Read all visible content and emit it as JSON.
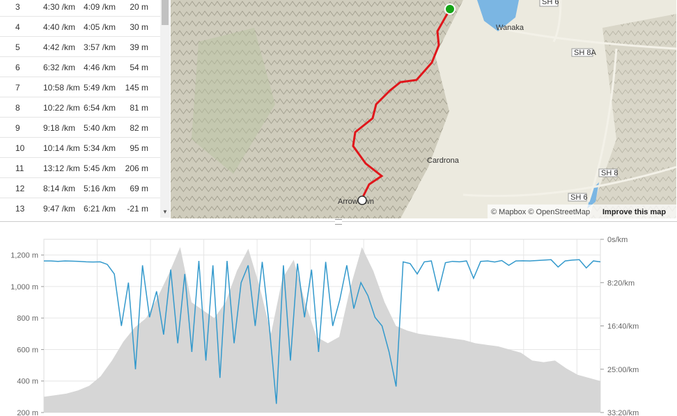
{
  "splits": {
    "rows": [
      [
        "3",
        "4:30 /km",
        "4:09 /km",
        "20 m"
      ],
      [
        "4",
        "4:40 /km",
        "4:05 /km",
        "30 m"
      ],
      [
        "5",
        "4:42 /km",
        "3:57 /km",
        "39 m"
      ],
      [
        "6",
        "6:32 /km",
        "4:46 /km",
        "54 m"
      ],
      [
        "7",
        "10:58 /km",
        "5:49 /km",
        "145 m"
      ],
      [
        "8",
        "10:22 /km",
        "6:54 /km",
        "81 m"
      ],
      [
        "9",
        "9:18 /km",
        "5:40 /km",
        "82 m"
      ],
      [
        "10",
        "10:14 /km",
        "5:34 /km",
        "95 m"
      ],
      [
        "11",
        "13:12 /km",
        "5:45 /km",
        "206 m"
      ],
      [
        "12",
        "8:14 /km",
        "5:16 /km",
        "69 m"
      ],
      [
        "13",
        "9:47 /km",
        "6:21 /km",
        "-21 m"
      ]
    ]
  },
  "map": {
    "labels": [
      "Wanaka",
      "Cardrona",
      "Arrowtown"
    ],
    "roads": [
      "SH 6",
      "SH 8A",
      "SH 8",
      "SH 6"
    ],
    "attribution": "© Mapbox © OpenStreetMap",
    "improve": "Improve this map"
  },
  "chart_data": {
    "type": "line",
    "ylim": [
      200,
      1300
    ],
    "yticks": [
      {
        "value": 200,
        "label": "200 m"
      },
      {
        "value": 400,
        "label": "400 m"
      },
      {
        "value": 600,
        "label": "600 m"
      },
      {
        "value": 800,
        "label": "800 m"
      },
      {
        "value": 1000,
        "label": "1,000 m"
      },
      {
        "value": 1200,
        "label": "1,200 m"
      }
    ],
    "y2lim": [
      0,
      2000
    ],
    "y2ticks": [
      {
        "value": 0,
        "label": "0s/km"
      },
      {
        "value": 500,
        "label": "8:20/km"
      },
      {
        "value": 1000,
        "label": "16:40/km"
      },
      {
        "value": 1500,
        "label": "25:00/km"
      },
      {
        "value": 2000,
        "label": "33:20/km"
      }
    ],
    "series": [
      {
        "type": "area",
        "color": "#d6d6d6",
        "values": [
          300,
          310,
          320,
          340,
          370,
          430,
          530,
          650,
          740,
          800,
          930,
          1080,
          1250,
          900,
          850,
          800,
          900,
          1100,
          1240,
          1000,
          700,
          1050,
          1170,
          900,
          680,
          640,
          680,
          1000,
          1250,
          1100,
          900,
          750,
          720,
          700,
          690,
          680,
          670,
          660,
          640,
          630,
          620,
          600,
          580,
          530,
          520,
          530,
          480,
          440,
          420,
          400
        ]
      },
      {
        "type": "line",
        "axis": "y2",
        "color": "#3399cc",
        "values": [
          250,
          250,
          255,
          250,
          252,
          255,
          260,
          262,
          260,
          290,
          400,
          1000,
          500,
          1500,
          300,
          900,
          600,
          1100,
          350,
          1200,
          400,
          1300,
          250,
          1400,
          300,
          1600,
          250,
          1200,
          500,
          300,
          1000,
          260,
          1000,
          1900,
          300,
          1400,
          280,
          900,
          350,
          1300,
          260,
          1000,
          700,
          300,
          800,
          500,
          650,
          900,
          1000,
          1300,
          1700,
          260,
          280,
          400,
          260,
          250,
          600,
          270,
          255,
          260,
          250,
          450,
          255,
          250,
          262,
          245,
          300,
          250,
          248,
          250,
          245,
          240,
          235,
          320,
          250,
          240,
          235,
          330,
          250,
          260
        ]
      }
    ]
  }
}
